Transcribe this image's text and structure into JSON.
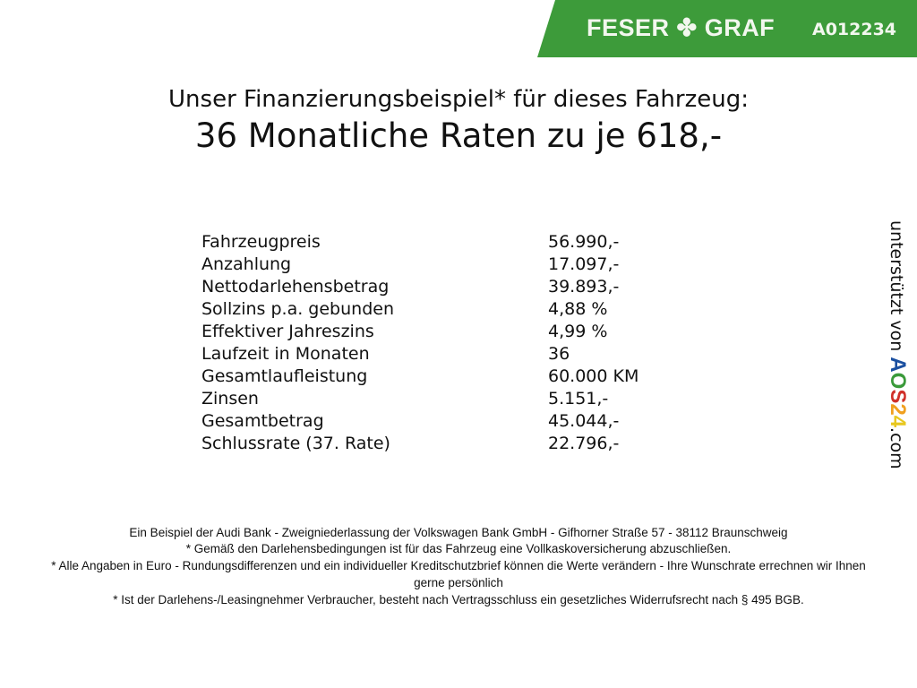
{
  "header": {
    "brand": "FESER",
    "brand2": "GRAF",
    "vehicle_code": "A012234",
    "banner_color": "#3d9b3a"
  },
  "title": {
    "line1": "Unser Finanzierungsbeispiel* für dieses Fahrzeug:",
    "line2": "36 Monatliche Raten zu je 618,-"
  },
  "table": [
    {
      "label": "Fahrzeugpreis",
      "value": "56.990,-"
    },
    {
      "label": "Anzahlung",
      "value": "17.097,-"
    },
    {
      "label": "Nettodarlehensbetrag",
      "value": "39.893,-"
    },
    {
      "label": "Sollzins p.a. gebunden",
      "value": "4,88 %"
    },
    {
      "label": "Effektiver Jahreszins",
      "value": "4,99 %"
    },
    {
      "label": "Laufzeit in Monaten",
      "value": "36"
    },
    {
      "label": "Gesamtlaufleistung",
      "value": "60.000 KM"
    },
    {
      "label": "Zinsen",
      "value": "5.151,-"
    },
    {
      "label": "Gesamtbetrag",
      "value": "45.044,-"
    },
    {
      "label": "Schlussrate (37. Rate)",
      "value": "22.796,-"
    }
  ],
  "side": {
    "text": "unterstützt von",
    "logo": [
      "A",
      "O",
      "S",
      "2",
      "4"
    ],
    "logo_colors": [
      "#1a4fa0",
      "#3a9a3a",
      "#d0302a",
      "#f0a020",
      "#e8c820"
    ],
    "suffix": ".com"
  },
  "footer": [
    "Ein Beispiel der Audi Bank - Zweigniederlassung der Volkswagen Bank GmbH - Gifhorner Straße 57 - 38112 Braunschweig",
    "* Gemäß den Darlehensbedingungen ist für das Fahrzeug eine Vollkaskoversicherung abzuschließen.",
    "* Alle Angaben in Euro - Rundungsdifferenzen und ein individueller Kreditschutzbrief können die Werte verändern - Ihre Wunschrate errechnen wir Ihnen gerne persönlich",
    "* Ist der Darlehens-/Leasingnehmer Verbraucher, besteht nach Vertragsschluss ein gesetzliches Widerrufsrecht nach § 495 BGB."
  ]
}
